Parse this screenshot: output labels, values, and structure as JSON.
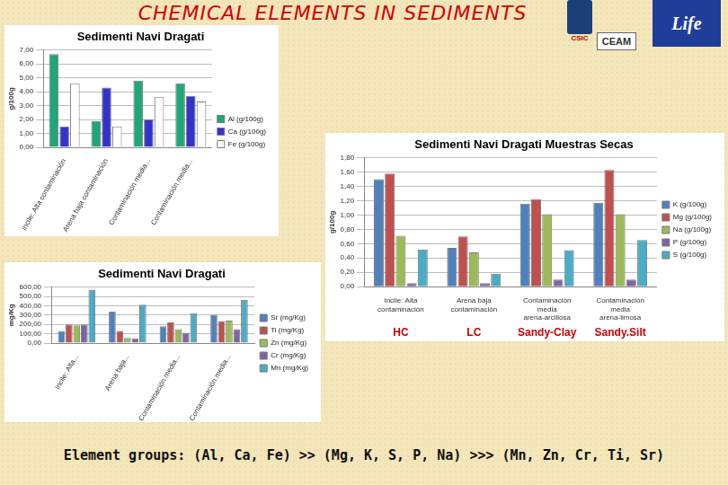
{
  "page": {
    "title": "CHEMICAL ELEMENTS IN SEDIMENTS",
    "footer": "Element groups: (Al, Ca, Fe) >> (Mg, K, S, P, Na) >>> (Mn, Zn, Cr, Ti, Sr)",
    "logos": [
      "CSIC",
      "CEAM",
      "Life"
    ]
  },
  "chart_data": [
    {
      "type": "bar",
      "title": "Sedimenti Navi Dragati",
      "y_label": "g/100g",
      "categories": [
        "Incile: Alta contaminación",
        "Arena baja contaminación",
        "Contaminación media...",
        "Contaminación media..."
      ],
      "series": [
        {
          "name": "Al (g/100g)",
          "color": "#1fa67a",
          "values": [
            6.7,
            1.9,
            4.8,
            4.6
          ]
        },
        {
          "name": "Ca (g/100g)",
          "color": "#3333cc",
          "values": [
            1.5,
            4.3,
            2.0,
            3.7
          ]
        },
        {
          "name": "Fe (g/100g)",
          "color": "#ffffff",
          "values": [
            4.6,
            1.5,
            3.6,
            3.3
          ]
        }
      ],
      "ylim": [
        0,
        7
      ],
      "yticks": [
        {
          "value": 0,
          "label": "0,00"
        },
        {
          "value": 1,
          "label": "1,00"
        },
        {
          "value": 2,
          "label": "2,00"
        },
        {
          "value": 3,
          "label": "3,00"
        },
        {
          "value": 4,
          "label": "4,00"
        },
        {
          "value": 5,
          "label": "5,00"
        },
        {
          "value": 6,
          "label": "6,00"
        },
        {
          "value": 7,
          "label": "7,00"
        }
      ],
      "grid": true,
      "legend": "right"
    },
    {
      "type": "bar",
      "title": "Sedimenti Navi Dragati Muestras Secas",
      "y_label": "g/100g",
      "categories": [
        "Incile: Alta contaminación",
        "Arena baja contaminación",
        "Contaminación media arena-arcillosa",
        "Contaminación media arena-limosa"
      ],
      "series": [
        {
          "name": "K (g/100g)",
          "color": "#4f81bd",
          "values": [
            1.5,
            0.54,
            1.16,
            1.17
          ]
        },
        {
          "name": "Mg (g/100g)",
          "color": "#c0504d",
          "values": [
            1.58,
            0.7,
            1.22,
            1.63
          ]
        },
        {
          "name": "Na (g/100g)",
          "color": "#9bbb59",
          "values": [
            0.71,
            0.48,
            1.01,
            1.01
          ]
        },
        {
          "name": "P (g/100g)",
          "color": "#8064a2",
          "values": [
            0.05,
            0.05,
            0.1,
            0.1
          ]
        },
        {
          "name": "S (g/100g)",
          "color": "#4bacc6",
          "values": [
            0.52,
            0.18,
            0.51,
            0.65
          ]
        }
      ],
      "ylim": [
        0,
        1.8
      ],
      "yticks": [
        {
          "value": 0,
          "label": "0,00"
        },
        {
          "value": 0.2,
          "label": "0,20"
        },
        {
          "value": 0.4,
          "label": "0,40"
        },
        {
          "value": 0.6,
          "label": "0,60"
        },
        {
          "value": 0.8,
          "label": "0,80"
        },
        {
          "value": 1.0,
          "label": "1,00"
        },
        {
          "value": 1.2,
          "label": "1,20"
        },
        {
          "value": 1.4,
          "label": "1,40"
        },
        {
          "value": 1.6,
          "label": "1,60"
        },
        {
          "value": 1.8,
          "label": "1,80"
        }
      ],
      "grid": true,
      "legend": "right",
      "annotations": [
        "HC",
        "LC",
        "Sandy-Clay",
        "Sandy.Silt"
      ]
    },
    {
      "type": "bar",
      "title": "Sedimenti Navi Dragati",
      "y_label": "mg/Kg",
      "categories": [
        "Incile: Alta...",
        "Arena baja...",
        "Contaminación media...",
        "Contaminación media..."
      ],
      "series": [
        {
          "name": "Sr (mg/Kg)",
          "color": "#4f81bd",
          "values": [
            130,
            340,
            180,
            300
          ]
        },
        {
          "name": "Ti (mg/Kg)",
          "color": "#c0504d",
          "values": [
            200,
            130,
            220,
            235
          ]
        },
        {
          "name": "Zn (mg/Kg)",
          "color": "#9bbb59",
          "values": [
            190,
            55,
            150,
            240
          ]
        },
        {
          "name": "Cr (mg/Kg)",
          "color": "#8064a2",
          "values": [
            200,
            50,
            110,
            150
          ]
        },
        {
          "name": "Mn (mg/Kg)",
          "color": "#4bacc6",
          "values": [
            570,
            410,
            320,
            465
          ]
        }
      ],
      "ylim": [
        0,
        600
      ],
      "yticks": [
        {
          "value": 0,
          "label": "0,00"
        },
        {
          "value": 100,
          "label": "100,00"
        },
        {
          "value": 200,
          "label": "200,00"
        },
        {
          "value": 300,
          "label": "300,00"
        },
        {
          "value": 400,
          "label": "400,00"
        },
        {
          "value": 500,
          "label": "500,00"
        },
        {
          "value": 600,
          "label": "600,00"
        }
      ],
      "grid": true,
      "legend": "right"
    }
  ]
}
